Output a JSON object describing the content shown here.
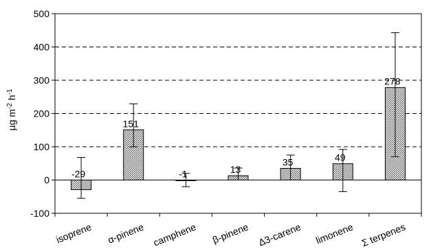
{
  "chart_data": {
    "type": "bar",
    "title": "",
    "xlabel": "",
    "ylabel": "µg m-2 h-1",
    "ylabel_parts": {
      "base": "µg m",
      "exp1": "-2",
      "mid": " h",
      "exp2": "-1"
    },
    "ylim": [
      -100,
      500
    ],
    "yticks": [
      -100,
      0,
      100,
      200,
      300,
      400,
      500
    ],
    "grid": {
      "dashed_lines_at": [
        100,
        200,
        300,
        400
      ]
    },
    "categories": [
      "isoprene",
      "α-pinene",
      "camphene",
      "β-pinene",
      "Δ3-carene",
      "limonene",
      "Σ terpenes"
    ],
    "values": [
      -29,
      151,
      -1,
      13,
      35,
      49,
      278
    ],
    "error_bars": [
      {
        "low": -55,
        "high": 68
      },
      {
        "low": 100,
        "high": 229
      },
      {
        "low": -20,
        "high": 20
      },
      {
        "low": 0,
        "high": 36
      },
      {
        "low": 0,
        "high": 75
      },
      {
        "low": -35,
        "high": 92
      },
      {
        "low": 70,
        "high": 443
      }
    ],
    "value_labels": [
      "-29",
      "151",
      "-1",
      "13",
      "35",
      "49",
      "278"
    ],
    "bar_fill": "#c8c8c8",
    "legend": "none"
  }
}
